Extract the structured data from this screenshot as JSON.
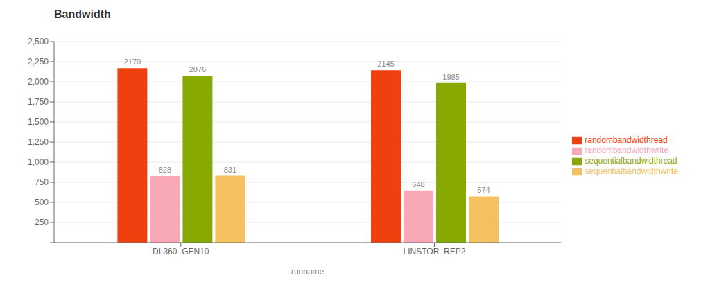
{
  "chart_data": {
    "type": "bar",
    "title": "Bandwidth",
    "xlabel": "runname",
    "categories": [
      "DL360_GEN10",
      "LINSTOR_REP2"
    ],
    "series": [
      {
        "name": "randombandwidthread",
        "color": "#f04010",
        "values": [
          2170,
          2145
        ]
      },
      {
        "name": "randombandwidthwrite",
        "color": "#f9a8b8",
        "values": [
          828,
          648
        ]
      },
      {
        "name": "sequentialbandwidthread",
        "color": "#88aa00",
        "values": [
          2076,
          1985
        ]
      },
      {
        "name": "sequentialbandwidthwrite",
        "color": "#f5c060",
        "values": [
          831,
          574
        ]
      }
    ],
    "ylim": [
      0,
      2500
    ],
    "yticks": [
      {
        "value": 0,
        "label": null
      },
      250,
      500,
      750,
      {
        "value": 1000,
        "label": "1,000"
      },
      {
        "value": 1250,
        "label": "1,250"
      },
      {
        "value": 1500,
        "label": "1,500"
      },
      {
        "value": 1750,
        "label": "1,750"
      },
      {
        "value": 2000,
        "label": "2,000"
      },
      {
        "value": 2250,
        "label": "2,250"
      },
      {
        "value": 2500,
        "label": "2,500"
      }
    ],
    "grid": true,
    "legend": "right",
    "data_labels": true
  }
}
